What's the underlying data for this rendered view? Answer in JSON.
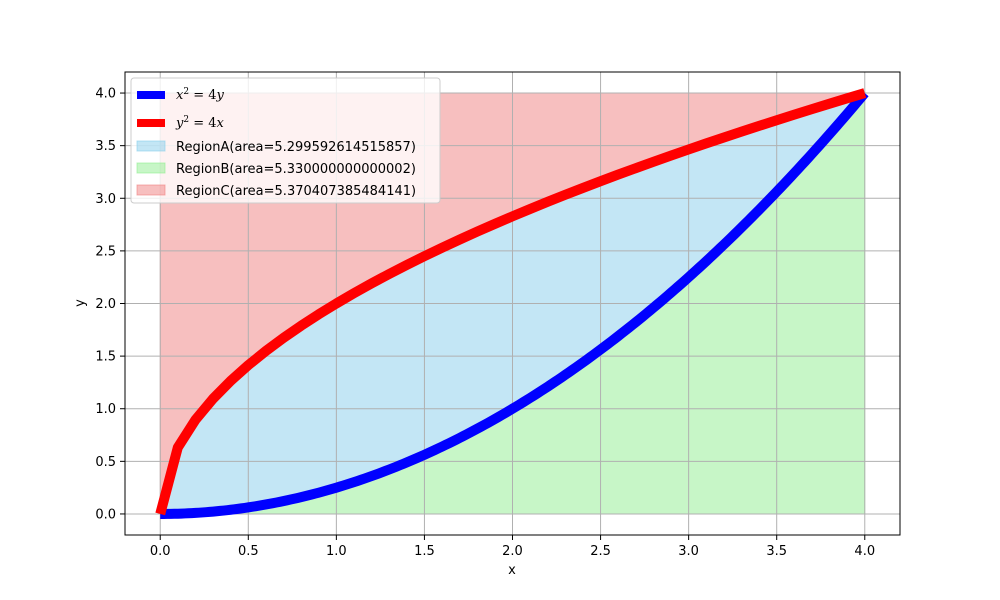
{
  "chart_data": {
    "type": "line",
    "title": "",
    "xlabel": "x",
    "ylabel": "y",
    "xlim": [
      -0.2,
      4.2
    ],
    "ylim": [
      -0.2,
      4.2
    ],
    "xticks": [
      "0.0",
      "0.5",
      "1.0",
      "1.5",
      "2.0",
      "2.5",
      "3.0",
      "3.5",
      "4.0"
    ],
    "yticks": [
      "0.0",
      "0.5",
      "1.0",
      "1.5",
      "2.0",
      "2.5",
      "3.0",
      "3.5",
      "4.0"
    ],
    "grid": true,
    "legend_position": "top-left",
    "series": [
      {
        "name": "x² = 4y",
        "color": "#0000ff",
        "equation": "y = x^2/4",
        "x_range": [
          0,
          4
        ]
      },
      {
        "name": "y² = 4x",
        "color": "#ff0000",
        "equation": "y = 2*sqrt(x)",
        "x_range": [
          0,
          4
        ]
      }
    ],
    "regions": [
      {
        "name": "RegionA(area=5.299592614515857)",
        "color": "#87ceeb",
        "between": "x^2/4 to 2*sqrt(x)"
      },
      {
        "name": "RegionB(area=5.330000000000002)",
        "color": "#90ee90",
        "between": "0 to x^2/4"
      },
      {
        "name": "RegionC(area=5.370407385484141)",
        "color": "#f08080",
        "between": "2*sqrt(x) to 4"
      }
    ]
  }
}
